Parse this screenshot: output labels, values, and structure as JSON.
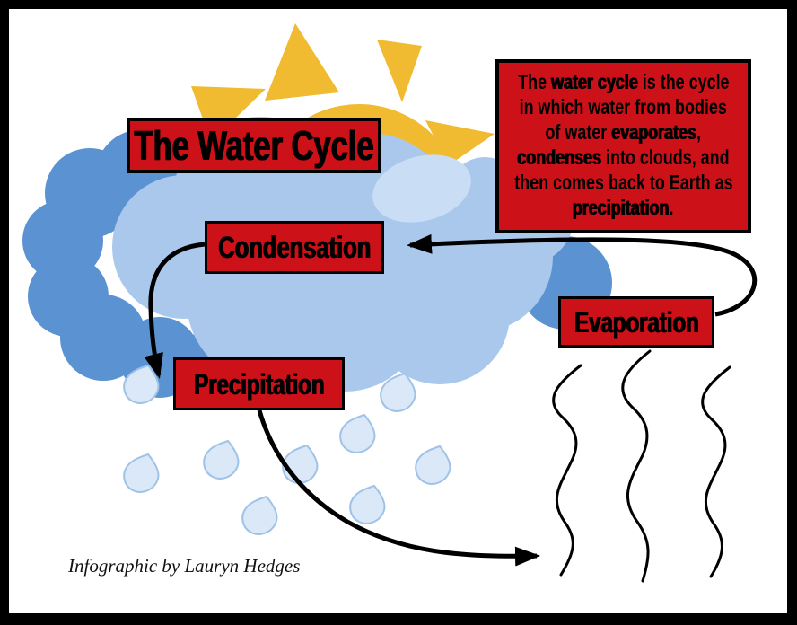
{
  "title": "The Water Cycle",
  "labels": {
    "condensation": "Condensation",
    "evaporation": "Evaporation",
    "precipitation": "Precipitation"
  },
  "description": {
    "lines": [
      [
        {
          "text": "The ",
          "bold": false
        },
        {
          "text": "water cycle",
          "bold": true
        },
        {
          "text": " is the cycle",
          "bold": false
        }
      ],
      [
        {
          "text": "in which water from bodies",
          "bold": false
        }
      ],
      [
        {
          "text": "of water ",
          "bold": false
        },
        {
          "text": "evaporates",
          "bold": true
        },
        {
          "text": ",",
          "bold": false
        }
      ],
      [
        {
          "text": "condenses",
          "bold": true
        },
        {
          "text": " into clouds, and",
          "bold": false
        }
      ],
      [
        {
          "text": "then comes back to Earth as",
          "bold": false
        }
      ],
      [
        {
          "text": "precipitation",
          "bold": true
        },
        {
          "text": ".",
          "bold": false
        }
      ]
    ]
  },
  "credit": "Infographic by Lauryn Hedges",
  "colors": {
    "box_red": "#CC1119",
    "outline_black": "#000000",
    "frame_black": "#000000",
    "sun_yellow": "#F0BB31",
    "cloud_main": "#A9C8EB",
    "cloud_dark": "#5B92D1",
    "cloud_highlight": "#C9DDF4",
    "raindrop_fill": "#DAE8F8",
    "raindrop_stroke": "#9FC3E8"
  },
  "icons": {
    "sun": "sun-icon: yellow semicircle with triangular rays",
    "cloud": "cloud-icon: overlapping blue circles",
    "raindrop": "raindrop-icon: light blue teardrop",
    "waves": "wave-lines-icon: three vertical squiggle lines",
    "arrow": "arrow-icon: thick curved black arrow"
  }
}
